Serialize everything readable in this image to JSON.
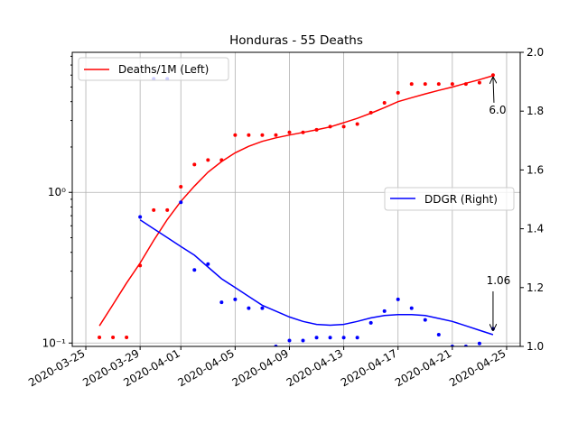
{
  "chart_data": {
    "type": "line",
    "title": "Honduras - 55 Deaths",
    "x_dates": [
      "2020-03-26",
      "2020-03-27",
      "2020-03-28",
      "2020-03-29",
      "2020-03-30",
      "2020-03-31",
      "2020-04-01",
      "2020-04-02",
      "2020-04-03",
      "2020-04-04",
      "2020-04-05",
      "2020-04-06",
      "2020-04-07",
      "2020-04-08",
      "2020-04-09",
      "2020-04-10",
      "2020-04-11",
      "2020-04-12",
      "2020-04-13",
      "2020-04-14",
      "2020-04-15",
      "2020-04-16",
      "2020-04-17",
      "2020-04-18",
      "2020-04-19",
      "2020-04-20",
      "2020-04-21",
      "2020-04-22",
      "2020-04-23",
      "2020-04-24"
    ],
    "x_ticks": [
      "2020-03-25",
      "2020-03-29",
      "2020-04-01",
      "2020-04-05",
      "2020-04-09",
      "2020-04-13",
      "2020-04-17",
      "2020-04-21",
      "2020-04-25"
    ],
    "left_axis": {
      "scale": "log",
      "ylim": [
        0.095,
        8.5
      ],
      "ticks": [
        {
          "value": 0.1,
          "label": "10⁻¹"
        },
        {
          "value": 1,
          "label": "10⁰"
        }
      ]
    },
    "right_axis": {
      "scale": "linear",
      "ylim": [
        1.0,
        2.0
      ],
      "ticks": [
        "1.0",
        "1.2",
        "1.4",
        "1.6",
        "1.8",
        "2.0"
      ]
    },
    "series": [
      {
        "name": "Deaths/1M (Left)",
        "color": "#ff0000",
        "axis": "left",
        "points": [
          0.109,
          0.109,
          0.109,
          0.327,
          0.763,
          0.763,
          1.09,
          1.53,
          1.64,
          1.64,
          2.4,
          2.4,
          2.4,
          2.4,
          2.5,
          2.5,
          2.6,
          2.73,
          2.73,
          2.84,
          3.38,
          3.93,
          4.58,
          5.24,
          5.24,
          5.24,
          5.24,
          5.24,
          5.35,
          6.0
        ],
        "smooth": [
          0.13,
          0.18,
          0.25,
          0.34,
          0.48,
          0.66,
          0.87,
          1.1,
          1.36,
          1.6,
          1.83,
          2.02,
          2.18,
          2.3,
          2.4,
          2.5,
          2.6,
          2.72,
          2.9,
          3.1,
          3.35,
          3.65,
          4.0,
          4.25,
          4.5,
          4.75,
          5.0,
          5.3,
          5.6,
          5.95
        ]
      },
      {
        "name": "DDGR (Right)",
        "color": "#0000ff",
        "axis": "right",
        "points": [
          null,
          null,
          null,
          1.44,
          1.91,
          1.91,
          1.49,
          1.26,
          1.28,
          1.15,
          1.16,
          1.13,
          1.13,
          1.0,
          1.02,
          1.02,
          1.03,
          1.03,
          1.03,
          1.03,
          1.08,
          1.12,
          1.16,
          1.13,
          1.09,
          1.04,
          1.0,
          1.0,
          1.01,
          1.06
        ],
        "smooth": [
          null,
          null,
          null,
          1.43,
          1.4,
          1.37,
          1.34,
          1.31,
          1.27,
          1.23,
          1.2,
          1.17,
          1.14,
          1.12,
          1.1,
          1.085,
          1.075,
          1.072,
          1.075,
          1.085,
          1.097,
          1.105,
          1.108,
          1.108,
          1.105,
          1.095,
          1.085,
          1.07,
          1.055,
          1.04
        ]
      }
    ],
    "annotations": [
      {
        "text": "6.0",
        "series": "Deaths/1M (Left)",
        "date": "2020-04-24"
      },
      {
        "text": "1.06",
        "series": "DDGR (Right)",
        "date": "2020-04-24"
      }
    ],
    "legend_left": "Deaths/1M (Left)",
    "legend_right": "DDGR (Right)",
    "grid": true
  }
}
